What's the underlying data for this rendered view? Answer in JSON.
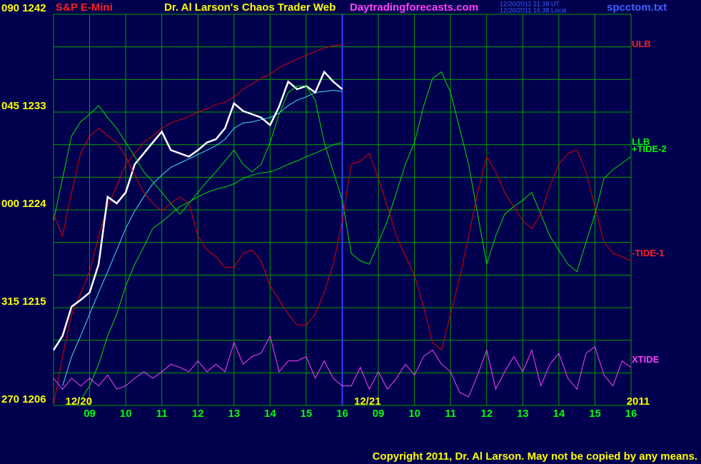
{
  "chart_data": {
    "type": "line",
    "symbol": "S&P E-Mini",
    "title": "Dr. Al Larson's Chaos Trader Web",
    "site": "Daytradingforecasts.com",
    "timestamp_ut": "12/20/2011 21:38 UT",
    "timestamp_local": "12/20/2011 16:38 Local",
    "file": "spcctom.txt",
    "copyright": "Copyright 2011, Dr. Al Larson. May not be copied by any means.",
    "categories": [
      null,
      null,
      null,
      null,
      "09",
      null,
      null,
      null,
      "10",
      null,
      null,
      null,
      "11",
      null,
      null,
      null,
      "12",
      null,
      null,
      null,
      "13",
      null,
      null,
      null,
      "14",
      null,
      null,
      null,
      "15",
      null,
      null,
      null,
      "16",
      null,
      null,
      null,
      "09",
      null,
      null,
      null,
      "10",
      null,
      null,
      null,
      "11",
      null,
      null,
      null,
      "12",
      null,
      null,
      null,
      "13",
      null,
      null,
      null,
      "14",
      null,
      null,
      null,
      "15",
      null,
      null,
      null,
      "16"
    ],
    "annotations": [
      {
        "text": "12/20",
        "index": 2
      },
      {
        "text": "12/21",
        "index": 34
      },
      {
        "text": "2011",
        "index": 64
      }
    ],
    "ylim": [
      1206,
      1242
    ],
    "yticks": [
      {
        "value": 1242,
        "label": "090  1242"
      },
      {
        "value": 1233,
        "label": "045  1233"
      },
      {
        "value": 1224,
        "label": "000  1224"
      },
      {
        "value": 1215,
        "label": "315  1215"
      },
      {
        "value": 1206,
        "label": "270  1206"
      }
    ],
    "ygrid": [
      1206,
      1209,
      1212,
      1215,
      1218,
      1221,
      1224,
      1227,
      1230,
      1233,
      1236,
      1239,
      1242
    ],
    "grid": true,
    "series": [
      {
        "name": "ULB",
        "color": "#e00000",
        "values": [
          1206.0,
          1210.5,
          1214.4,
          1216.3,
          1218.3,
          1221.6,
          1224.3,
          1226.2,
          1228.2,
          1229.2,
          1230.2,
          1230.8,
          1231.5,
          1232.0,
          1232.3,
          1232.6,
          1233.0,
          1233.3,
          1233.7,
          1233.9,
          1234.4,
          1235.1,
          1235.6,
          1236.1,
          1236.5,
          1237.1,
          1237.5,
          1237.9,
          1238.2,
          1238.6,
          1238.9,
          1239.1,
          1239.2,
          null,
          null,
          null,
          null,
          null,
          null,
          null,
          null,
          null,
          null,
          null,
          null,
          null,
          null,
          null,
          null,
          null,
          null,
          null,
          null,
          null,
          null,
          null,
          null,
          null,
          null,
          null,
          null,
          null,
          null,
          null,
          null
        ]
      },
      {
        "name": "LLB",
        "color": "#00e000",
        "values": [
          null,
          null,
          null,
          1206.5,
          1207.8,
          1209.8,
          1212.4,
          1214.4,
          1217.0,
          1219.0,
          1220.6,
          1222.3,
          1222.9,
          1223.6,
          1224.3,
          1224.7,
          1225.2,
          1225.6,
          1225.9,
          1226.1,
          1226.4,
          1226.9,
          1227.2,
          1227.4,
          1227.5,
          1227.8,
          1228.2,
          1228.5,
          1228.9,
          1229.2,
          1229.6,
          1230.0,
          1230.2,
          null,
          null,
          null,
          null,
          null,
          null,
          null,
          null,
          null,
          null,
          null,
          null,
          null,
          null,
          null,
          null,
          null,
          null,
          null,
          null,
          null,
          null,
          null,
          null,
          null,
          null,
          null,
          null,
          null,
          null,
          null,
          null
        ]
      },
      {
        "color": "#40e0ff",
        "values": [
          null,
          1207.8,
          1210.5,
          1212.4,
          1214.4,
          1216.4,
          1218.3,
          1220.3,
          1222.3,
          1223.9,
          1225.2,
          1226.4,
          1227.2,
          1227.9,
          1228.3,
          1228.7,
          1229.1,
          1229.5,
          1229.9,
          1230.5,
          1231.5,
          1232.0,
          1232.1,
          1232.3,
          1232.5,
          1232.9,
          1233.6,
          1234.1,
          1234.4,
          1234.8,
          1234.9,
          1235.0,
          1234.9,
          null,
          null,
          null,
          null,
          null,
          null,
          null,
          null,
          null,
          null,
          null,
          null,
          null,
          null,
          null,
          null,
          null,
          null,
          null,
          null,
          null,
          null,
          null,
          null,
          null,
          null,
          null,
          null,
          null,
          null,
          null,
          null
        ]
      },
      {
        "color": "#ffffff",
        "values": [
          1211.1,
          1212.4,
          1215.1,
          1215.7,
          1216.4,
          1219.0,
          1225.2,
          1224.6,
          1225.6,
          1228.2,
          1229.2,
          1230.2,
          1231.2,
          1229.5,
          1229.2,
          1228.9,
          1229.5,
          1230.2,
          1230.5,
          1231.5,
          1233.8,
          1233.1,
          1232.8,
          1232.5,
          1231.8,
          1233.5,
          1235.8,
          1235.1,
          1235.4,
          1234.8,
          1236.7,
          1235.8,
          1235.1,
          null,
          null,
          null,
          null,
          null,
          null,
          null,
          null,
          null,
          null,
          null,
          null,
          null,
          null,
          null,
          null,
          null,
          null,
          null,
          null,
          null,
          null,
          null,
          null,
          null,
          null,
          null,
          null,
          null,
          null,
          null,
          null
        ]
      },
      {
        "name": "+TIDE-2",
        "color": "#00e000",
        "values": [
          1223.0,
          1226.9,
          1230.8,
          1232.1,
          1232.8,
          1233.6,
          1232.5,
          1231.5,
          1230.2,
          1228.9,
          1227.5,
          1226.6,
          1225.6,
          1224.6,
          1223.6,
          1224.6,
          1225.6,
          1226.6,
          1227.5,
          1228.5,
          1229.5,
          1228.2,
          1227.5,
          1228.2,
          1230.2,
          1232.8,
          1234.8,
          1235.4,
          1235.4,
          1234.1,
          1230.2,
          1227.5,
          1224.9,
          1220.0,
          1219.3,
          1219.0,
          1221.0,
          1223.0,
          1225.6,
          1228.2,
          1230.2,
          1233.5,
          1236.1,
          1236.7,
          1234.8,
          1231.5,
          1228.2,
          1223.6,
          1219.0,
          1221.6,
          1223.6,
          1224.3,
          1224.9,
          1225.6,
          1223.6,
          1221.6,
          1220.3,
          1219.0,
          1218.3,
          1221.0,
          1223.6,
          1226.9,
          1227.7,
          1228.3,
          1228.9
        ]
      },
      {
        "name": "-TIDE-1",
        "color": "#e00000",
        "values": [
          1223.6,
          1221.6,
          1225.6,
          1229.2,
          1230.8,
          1231.5,
          1230.8,
          1230.2,
          1228.9,
          1227.2,
          1225.6,
          1224.6,
          1223.9,
          1224.6,
          1225.2,
          1224.6,
          1221.6,
          1220.3,
          1219.7,
          1218.7,
          1218.7,
          1220.0,
          1220.3,
          1219.3,
          1217.0,
          1215.7,
          1214.4,
          1213.4,
          1213.4,
          1214.4,
          1216.4,
          1219.0,
          1223.0,
          1228.2,
          1228.5,
          1229.2,
          1226.9,
          1224.3,
          1221.6,
          1219.7,
          1218.0,
          1215.1,
          1211.8,
          1211.1,
          1214.4,
          1217.7,
          1221.6,
          1225.6,
          1228.9,
          1227.5,
          1225.6,
          1224.3,
          1223.0,
          1222.3,
          1223.6,
          1226.2,
          1228.2,
          1229.2,
          1229.5,
          1227.5,
          1224.3,
          1221.0,
          1220.0,
          1219.7,
          1219.3
        ]
      },
      {
        "name": "XTIDE",
        "color": "#ff40ff",
        "values": [
          1208.5,
          1207.5,
          1208.5,
          1207.8,
          1208.5,
          1207.8,
          1208.8,
          1207.5,
          1207.8,
          1208.5,
          1209.1,
          1208.5,
          1209.1,
          1209.8,
          1209.5,
          1209.1,
          1210.1,
          1209.1,
          1209.8,
          1209.1,
          1211.8,
          1209.8,
          1210.5,
          1210.8,
          1212.4,
          1209.1,
          1210.1,
          1210.1,
          1210.5,
          1208.5,
          1210.1,
          1208.5,
          1207.8,
          1207.8,
          1209.5,
          1207.5,
          1209.1,
          1207.5,
          1208.5,
          1209.8,
          1208.8,
          1210.5,
          1211.1,
          1209.8,
          1209.1,
          1207.2,
          1206.8,
          1208.8,
          1211.1,
          1207.5,
          1209.1,
          1210.5,
          1209.1,
          1211.1,
          1207.8,
          1209.8,
          1210.8,
          1208.5,
          1207.5,
          1210.8,
          1211.4,
          1208.8,
          1207.8,
          1210.1,
          1209.5
        ]
      }
    ]
  }
}
